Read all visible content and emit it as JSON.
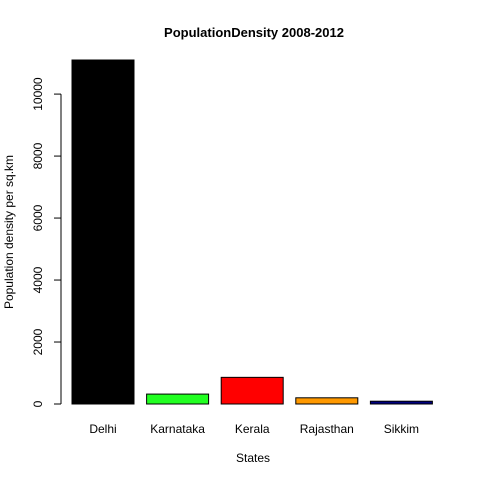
{
  "chart_data": {
    "type": "bar",
    "title": "PopulationDensity 2008-2012",
    "xlabel": "States",
    "ylabel": "Population density per sq.km",
    "categories": [
      "Delhi",
      "Karnataka",
      "Kerala",
      "Rajasthan",
      "Sikkim"
    ],
    "values": [
      11100,
      320,
      860,
      200,
      90
    ],
    "colors": [
      "#000000",
      "#22ff22",
      "#ff0000",
      "#ff9900",
      "#000080"
    ],
    "ylim": [
      0,
      11100
    ],
    "yticks": [
      0,
      2000,
      4000,
      6000,
      8000,
      10000
    ],
    "ytick_labels": [
      "0",
      "2000",
      "4000",
      "6000",
      "8000",
      "10000"
    ],
    "grid": false,
    "legend": "none"
  }
}
